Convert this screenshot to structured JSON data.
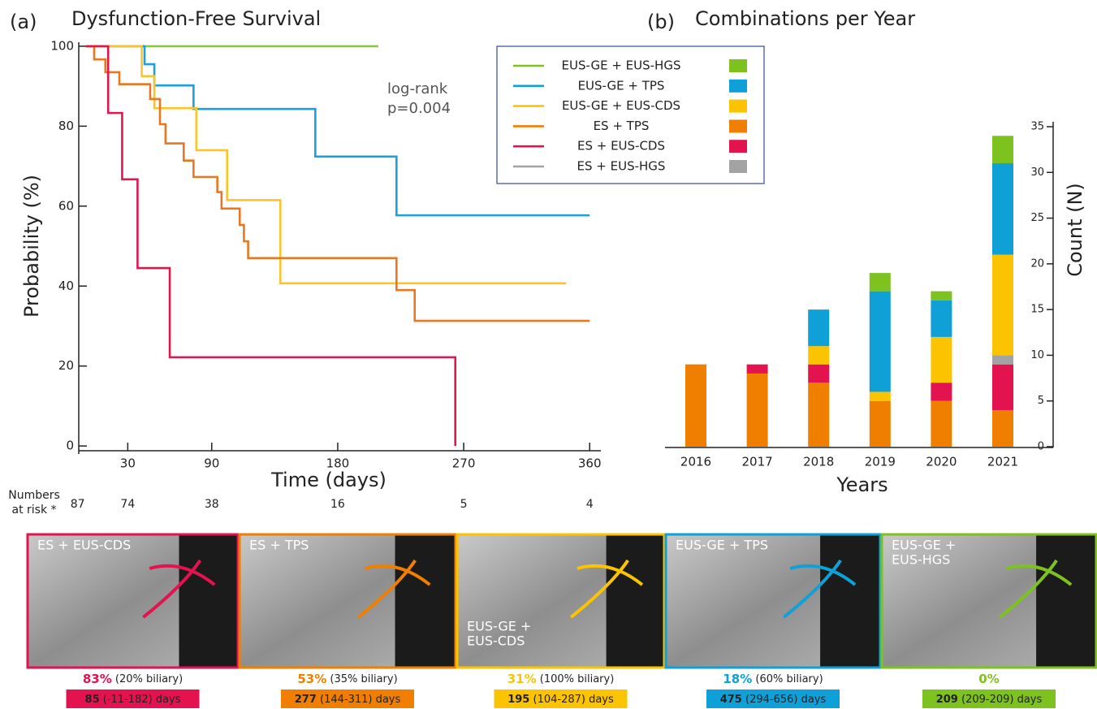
{
  "chart_data": [
    {
      "type": "line",
      "step": "post",
      "panel_label": "(a)",
      "title": "Dysfunction-Free Survival",
      "x_label": "Time (days)",
      "y_label": "Probability (%)",
      "xlim": [
        -5,
        368
      ],
      "xticks": [
        30,
        90,
        180,
        270,
        360
      ],
      "ylim": [
        -2,
        101
      ],
      "yticks": [
        0,
        20,
        40,
        60,
        80,
        100
      ],
      "annotation": [
        "log-rank",
        "p=0.004"
      ],
      "series": [
        {
          "name": "EUS-GE + EUS-HGS",
          "color": "#8cc63f",
          "x": [
            0,
            209
          ],
          "values": [
            100,
            100
          ]
        },
        {
          "name": "EUS-GE + TPS",
          "color": "#1ba1d8",
          "x": [
            0,
            42,
            49,
            77,
            164,
            222,
            360
          ],
          "values": [
            100,
            95.5,
            90.2,
            84.3,
            72.4,
            57.7,
            57.7
          ]
        },
        {
          "name": "EUS-GE + EUS-CDS",
          "color": "#fbc52a",
          "x": [
            0,
            40,
            49,
            79,
            101,
            139,
            343
          ],
          "values": [
            100,
            92.5,
            84.5,
            74,
            61.5,
            40.7,
            40.7
          ]
        },
        {
          "name": "ES + TPS",
          "color": "#e87722",
          "x": [
            0,
            6,
            14,
            24,
            46,
            53,
            57,
            70,
            77,
            94,
            97,
            110,
            113,
            116,
            222,
            235,
            360
          ],
          "values": [
            100,
            96.7,
            93.5,
            90.5,
            86.8,
            80.5,
            75.7,
            71.4,
            67.3,
            63.5,
            59.4,
            55.3,
            51.2,
            47,
            39,
            31.3,
            31.3
          ]
        },
        {
          "name": "ES + EUS-CDS",
          "color": "#e0174d",
          "x": [
            0,
            16,
            26,
            37,
            60,
            264
          ],
          "values": [
            100,
            83.3,
            66.7,
            44.5,
            22.2,
            0
          ]
        }
      ],
      "at_risk": {
        "label": [
          "Numbers",
          "at risk *"
        ],
        "x": [
          0,
          30,
          90,
          180,
          270,
          360
        ],
        "values": [
          87,
          74,
          38,
          16,
          5,
          4
        ]
      }
    },
    {
      "type": "bar",
      "stacked": true,
      "panel_label": "(b)",
      "title": "Combinations per Year",
      "x_label": "Years",
      "y_label": "Count (N)",
      "categories": [
        "2016",
        "2017",
        "2018",
        "2019",
        "2020",
        "2021"
      ],
      "ylim": [
        0,
        35
      ],
      "yticks": [
        0,
        5,
        10,
        15,
        20,
        25,
        30,
        35
      ],
      "series": [
        {
          "name": "EUS-GE + EUS-HGS",
          "color": "#7dc21e",
          "values": [
            0,
            0,
            0,
            2,
            1,
            3
          ]
        },
        {
          "name": "EUS-GE + TPS",
          "color": "#0fa0d8",
          "values": [
            0,
            0,
            4,
            11,
            4,
            10
          ]
        },
        {
          "name": "EUS-GE + EUS-CDS",
          "color": "#fcc400",
          "values": [
            0,
            0,
            2,
            1,
            5,
            11
          ]
        },
        {
          "name": "ES + TPS",
          "color": "#f07f00",
          "values": [
            9,
            8,
            7,
            5,
            5,
            4
          ]
        },
        {
          "name": "ES + EUS-CDS",
          "color": "#e2134f",
          "values": [
            0,
            1,
            2,
            0,
            2,
            5
          ]
        },
        {
          "name": "ES + EUS-HGS",
          "color": "#a3a3a3",
          "values": [
            0,
            0,
            0,
            0,
            0,
            1
          ]
        }
      ]
    }
  ],
  "panels": [
    {
      "title": [
        "ES + EUS-CDS"
      ],
      "color": "#e2134f",
      "rate": "83%",
      "biliary": "(20% biliary)",
      "median": 85,
      "range": "(-11-182) days"
    },
    {
      "title": [
        "ES + TPS"
      ],
      "color": "#f07f00",
      "rate": "53%",
      "biliary": "(35% biliary)",
      "median": 277,
      "range": "(144-311) days"
    },
    {
      "title": [
        "EUS-GE +",
        "EUS-CDS"
      ],
      "color": "#fcc400",
      "rate": "31%",
      "biliary": "(100% biliary)",
      "median": 195,
      "range": "(104-287) days"
    },
    {
      "title": [
        "EUS-GE + TPS"
      ],
      "color": "#0fa0d8",
      "rate": "18%",
      "biliary": "(60% biliary)",
      "median": 475,
      "range": "(294-656) days"
    },
    {
      "title": [
        "EUS-GE +",
        "EUS-HGS"
      ],
      "color": "#7dc21e",
      "rate": "0%",
      "median": 209,
      "range": "(209-209) days"
    }
  ]
}
